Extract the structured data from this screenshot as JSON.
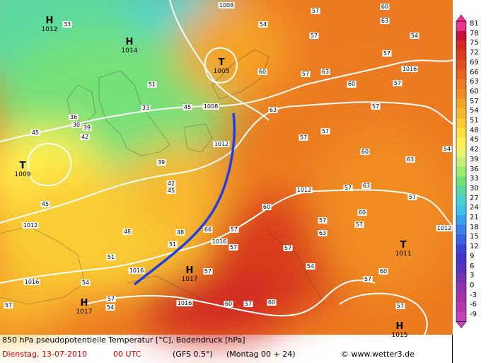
{
  "caption": {
    "line1": "850 hPa pseudopotentielle Temperatur [°C], Bodendruck [hPa]",
    "date": "Dienstag, 13-07-2010",
    "time": "00 UTC",
    "model": "(GFS 0.5°)",
    "run": "(Montag 00 + 24)",
    "credit": "© www.wetter3.de"
  },
  "legend": {
    "labels": [
      "81",
      "78",
      "75",
      "72",
      "69",
      "66",
      "63",
      "60",
      "57",
      "54",
      "51",
      "48",
      "45",
      "42",
      "39",
      "36",
      "33",
      "30",
      "27",
      "24",
      "21",
      "18",
      "15",
      "12",
      "9",
      "6",
      "3",
      "0",
      "-3",
      "-6",
      "-9"
    ],
    "colors": [
      "#e8338f",
      "#c8103a",
      "#d22a22",
      "#d83c1c",
      "#e0501c",
      "#e6641e",
      "#ec7a20",
      "#f08c22",
      "#f4a228",
      "#f8b82e",
      "#fbcc34",
      "#fde03c",
      "#fff050",
      "#eef26a",
      "#c8f078",
      "#9cec6c",
      "#76e078",
      "#5ad8a0",
      "#44d2d0",
      "#3cc0ec",
      "#3ca0f0",
      "#3c80ec",
      "#3c60e4",
      "#3c44d8",
      "#4434c8",
      "#5a34bc",
      "#7434b4",
      "#8e34ac",
      "#a434a4",
      "#b438a8",
      "#c044b4"
    ]
  },
  "pressure_systems": [
    {
      "type": "H",
      "value": "1012"
    },
    {
      "type": "H",
      "value": "1014"
    },
    {
      "type": "T",
      "value": "1005"
    },
    {
      "type": "T",
      "value": "1009"
    },
    {
      "type": "H",
      "value": "1017"
    },
    {
      "type": "H",
      "value": "1017"
    },
    {
      "type": "T",
      "value": "1011"
    },
    {
      "type": "H",
      "value": "1015"
    }
  ],
  "isobar_labels": [
    "1008",
    "1008",
    "1012",
    "1012",
    "1012",
    "1016",
    "1016",
    "1016",
    "1016",
    "1016",
    "1012"
  ],
  "theta_labels": [
    "33",
    "36",
    "51",
    "33",
    "30",
    "39",
    "42",
    "45",
    "45",
    "39",
    "42",
    "45",
    "45",
    "48",
    "48",
    "51",
    "51",
    "54",
    "57",
    "57",
    "54",
    "57",
    "60",
    "63",
    "57",
    "57",
    "54",
    "57",
    "57",
    "60",
    "63",
    "63",
    "60",
    "57",
    "54",
    "57",
    "60",
    "63",
    "66",
    "60",
    "57",
    "57",
    "54",
    "57",
    "60",
    "63",
    "57",
    "57",
    "60",
    "63",
    "57",
    "60",
    "57",
    "57",
    "54",
    "57",
    "57",
    "57",
    "57",
    "57",
    "60"
  ]
}
